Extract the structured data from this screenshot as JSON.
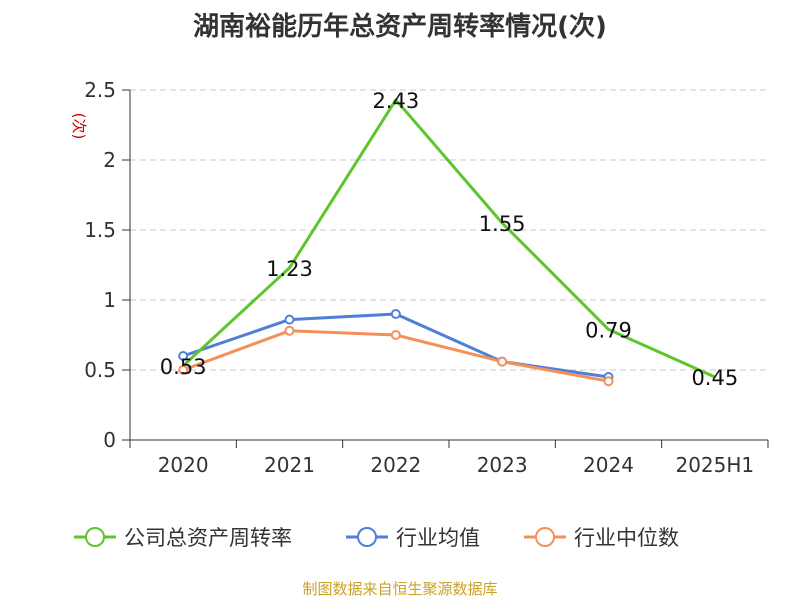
{
  "chart_data": {
    "type": "line",
    "title": "湖南裕能历年总资产周转率情况(次)",
    "ylabel": "(次)",
    "xlabel": "",
    "categories": [
      "2020",
      "2021",
      "2022",
      "2023",
      "2024",
      "2025H1"
    ],
    "ylim": [
      0,
      2.5
    ],
    "yticks": [
      "0",
      "0.5",
      "1",
      "1.5",
      "2",
      "2.5"
    ],
    "grid": true,
    "legend_position": "bottom",
    "series": [
      {
        "name": "公司总资产周转率",
        "color": "#5ec52a",
        "values": [
          0.53,
          1.23,
          2.43,
          1.55,
          0.79,
          0.45
        ],
        "labels": [
          "0.53",
          "1.23",
          "2.43",
          "1.55",
          "0.79",
          "0.45"
        ],
        "show_markers": false
      },
      {
        "name": "行业均值",
        "color": "#4f7fd8",
        "values": [
          0.6,
          0.86,
          0.9,
          0.56,
          0.45,
          null
        ],
        "show_markers": true
      },
      {
        "name": "行业中位数",
        "color": "#f4905a",
        "values": [
          0.5,
          0.78,
          0.75,
          0.56,
          0.42,
          null
        ],
        "show_markers": true
      }
    ]
  },
  "source_text": "制图数据来自恒生聚源数据库"
}
